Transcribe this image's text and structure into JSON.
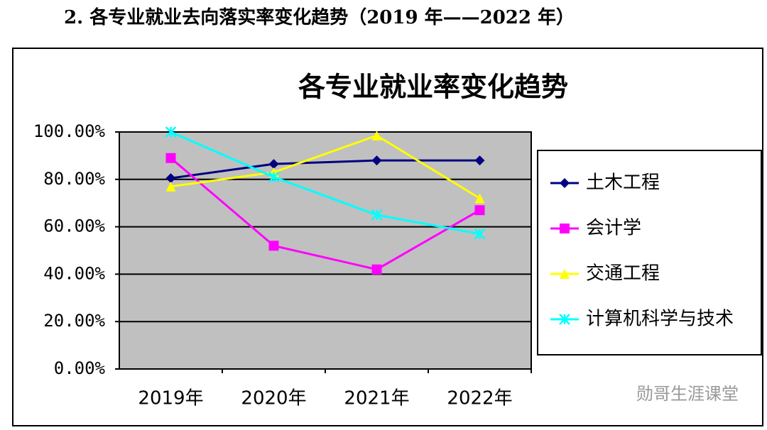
{
  "heading": "2. 各专业就业去向落实率变化趋势（2019 年——2022 年）",
  "chart_data": {
    "type": "line",
    "title": "各专业就业率变化趋势",
    "categories": [
      "2019年",
      "2020年",
      "2021年",
      "2022年"
    ],
    "series": [
      {
        "name": "土木工程",
        "color": "#000080",
        "marker": "diamond",
        "values": [
          80.5,
          86.5,
          88,
          88
        ]
      },
      {
        "name": "会计学",
        "color": "#ff00ff",
        "marker": "square",
        "values": [
          89,
          52,
          42,
          67
        ]
      },
      {
        "name": "交通工程",
        "color": "#ffff00",
        "marker": "triangle",
        "values": [
          77,
          83,
          98.5,
          72
        ]
      },
      {
        "name": "计算机科学与技术",
        "color": "#00ffff",
        "marker": "x",
        "values": [
          100,
          81,
          65,
          57
        ]
      }
    ],
    "ylim": [
      0,
      100
    ],
    "yticks": [
      {
        "value": 0,
        "label": "0.00%"
      },
      {
        "value": 20,
        "label": "20.00%"
      },
      {
        "value": 40,
        "label": "40.00%"
      },
      {
        "value": 60,
        "label": "60.00%"
      },
      {
        "value": 80,
        "label": "80.00%"
      },
      {
        "value": 100,
        "label": "100.00%"
      }
    ],
    "grid": true,
    "legend": "right",
    "plot_background": "#c0c0c0"
  },
  "watermark": "勋哥生涯课堂"
}
